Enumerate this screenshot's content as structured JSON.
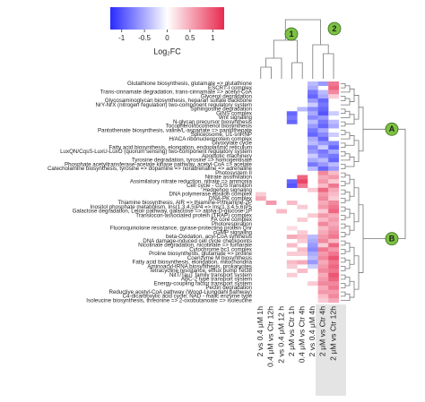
{
  "chart_data": {
    "type": "heatmap",
    "colorbar_title": "Log₂FC",
    "zlim": [
      -1.25,
      1.25
    ],
    "zticks": [
      -1,
      -0.5,
      0,
      0.5,
      1
    ],
    "colorscale": [
      "#2a2aff",
      "#ffffff",
      "#e82a50"
    ],
    "column_clusters": [
      "1",
      "2"
    ],
    "row_clusters": [
      "A",
      "B"
    ],
    "columns": [
      "2 vs 0.4 μM 1h",
      "0.4 μM vs Ctr 12h",
      "2 vs 0.4 μM 12 h",
      "2 μM vs Ctr 1h",
      "0.4 μM vs Ctr 4h",
      "2 vs 0.4 μM 4h",
      "2 μM vs Ctr 4h",
      "2 μM vs Ctr 12h"
    ],
    "rows": [
      "Glutathione biosynthesis, glutamate => glutathione",
      "ESCRT-I complex",
      "Trans-cinnamate degradation, trans-cinnamate => acetyl-CoA",
      "Glycerol degradation",
      "Glycosaminoglycan biosynthesis, heparan sulfate backbone",
      "NrY-NrX (nitrogen regulation) two-component regulatory system",
      "Sphingosine degradation",
      "GINS complex",
      "Wnt signaling",
      "N-glycan precursor biosynthesis",
      "Tocopherol/tocotrienol biosynthesis",
      "Pantothenate biosynthesis, valine/L-aspartate => pantothenate",
      "Spliceosome, U1-snRNP",
      "H/ACA ribonucleoprotein complex",
      "Glyoxylate cycle",
      "Fatty acid biosynthesis, elongation, endoplasmic reticulum",
      "LuxQN/CqsS-LuxU-LuxO (quorum sensing) two-component regulatory system",
      "Apoptotic machinery",
      "Tyrosine degradation, tyrosine => homogentisate",
      "Phosphate acetyltransferase-acetate kinase pathway, acetyl-CoA => acetate",
      "Catecholamine biosynthesis, tyrosine => dopamine => noradrenaline => adrenaline",
      "Photosystem II",
      "Nitrate assimilation",
      "Assimilatory nitrate reduction, nitrate => ammonia",
      "Cell cycle - G1/S transition",
      "Hedgehog signaling",
      "DNA polymerase epsilon complex",
      "DNA-PK complex",
      "Thiamine biosynthesis, AIR => thiamine-P/thiamine-2P",
      "Inositol phosphate metabolism, Ins(1,3,4,5)P4 => Ins(1,3,4,5,6)P5",
      "Galactose degradation, Leloir pathway, galactose => alpha-D-glucose-1P",
      "Translocon-associated protein (TRAP) complex",
      "FA core complex",
      "Photorespiration",
      "Fluoroquinolone resistance, gyrase-protecting protein Qnr",
      "cGMP signaling",
      "beta-Oxidation, acyl-CoA synthesis",
      "DNA damage-induced cell cycle checkpoints",
      "Nicotinate degradation, nicotinate => fumarate",
      "Cytochrome bc1 complex",
      "Proline biosynthesis, glutamate => proline",
      "Coenzyme M biosynthesis",
      "Fatty acid biosynthesis, elongation, mitochondria",
      "Aminoacyl-tRNA biosynthesis, prokaryotes",
      "Tetracycline resistance, efflux pump Tet38",
      "NitT/TauT family transport system",
      "ABC-2 type transport system",
      "Energy-coupling factor transport system",
      "Pectin degradation",
      "Reductive acetyl-CoA pathway (Wood-Ljungdahl pathway)",
      "C4-dicarboxylic acid cycle, NAD - malic enzyme type",
      "Isoleucine biosynthesis, threonine => 2-oxobutanoate => isoleucine"
    ],
    "values": [
      [
        null,
        null,
        null,
        null,
        null,
        -0.4,
        -0.6,
        0.8
      ],
      [
        null,
        null,
        null,
        null,
        null,
        -0.5,
        null,
        0.9
      ],
      [
        null,
        null,
        null,
        null,
        null,
        -0.8,
        -0.4,
        0.7
      ],
      [
        null,
        null,
        null,
        null,
        null,
        -0.9,
        -0.5,
        0.3
      ],
      [
        null,
        null,
        null,
        null,
        null,
        -0.6,
        -0.9,
        null
      ],
      [
        null,
        null,
        null,
        null,
        null,
        -0.3,
        -0.8,
        null
      ],
      [
        null,
        null,
        null,
        null,
        -0.4,
        -0.7,
        -0.9,
        null
      ],
      [
        null,
        null,
        null,
        -0.9,
        null,
        -0.5,
        -1,
        -0.3
      ],
      [
        null,
        null,
        null,
        -0.8,
        null,
        -0.7,
        -0.6,
        null
      ],
      [
        null,
        null,
        null,
        -0.9,
        null,
        -0.4,
        -0.8,
        -0.4
      ],
      [
        null,
        null,
        null,
        null,
        null,
        -0.6,
        -0.9,
        -0.5
      ],
      [
        null,
        null,
        null,
        null,
        null,
        -0.8,
        -0.5,
        null
      ],
      [
        null,
        null,
        null,
        null,
        null,
        -0.9,
        -0.7,
        -0.3
      ],
      [
        null,
        null,
        null,
        null,
        null,
        -0.5,
        -0.9,
        null
      ],
      [
        null,
        null,
        null,
        null,
        null,
        -0.4,
        -0.6,
        -0.7
      ],
      [
        null,
        null,
        null,
        null,
        null,
        -0.7,
        -0.3,
        -0.9
      ],
      [
        null,
        null,
        null,
        null,
        null,
        -0.6,
        -0.8,
        -0.5
      ],
      [
        null,
        null,
        null,
        null,
        null,
        -0.3,
        -0.7,
        -0.8
      ],
      [
        null,
        null,
        null,
        null,
        null,
        -0.5,
        -0.4,
        -0.9
      ],
      [
        null,
        null,
        null,
        null,
        null,
        -0.8,
        -0.6,
        -0.4
      ],
      [
        null,
        null,
        null,
        null,
        null,
        -0.4,
        -0.9,
        -0.6
      ],
      [
        null,
        null,
        null,
        null,
        null,
        null,
        0.7,
        0.4
      ],
      [
        null,
        null,
        null,
        null,
        0.9,
        null,
        0.5,
        0.6
      ],
      [
        null,
        null,
        null,
        -0.9,
        1.1,
        null,
        0.6,
        0.3
      ],
      [
        null,
        null,
        null,
        -1,
        0.8,
        null,
        0.4,
        0.8
      ],
      [
        null,
        null,
        null,
        null,
        null,
        0.3,
        0.9,
        0.5
      ],
      [
        0.3,
        null,
        null,
        null,
        null,
        null,
        0.6,
        0.4
      ],
      [
        0.5,
        null,
        null,
        null,
        null,
        null,
        0.7,
        0.3
      ],
      [
        null,
        0.6,
        null,
        0.4,
        null,
        null,
        0.5,
        0.7
      ],
      [
        null,
        null,
        null,
        null,
        0.3,
        null,
        0.6,
        0.8
      ],
      [
        null,
        null,
        0.4,
        null,
        null,
        null,
        0.3,
        0.9
      ],
      [
        null,
        null,
        null,
        null,
        null,
        0.3,
        0.6,
        0.5
      ],
      [
        null,
        null,
        null,
        null,
        0.3,
        null,
        0.4,
        0.6
      ],
      [
        null,
        null,
        null,
        null,
        null,
        null,
        0.7,
        0.5
      ],
      [
        null,
        null,
        null,
        0.2,
        null,
        null,
        0.4,
        0.6
      ],
      [
        null,
        null,
        null,
        null,
        0.3,
        null,
        0.5,
        0.7
      ],
      [
        null,
        null,
        null,
        0.5,
        0.4,
        -0.4,
        0.6,
        0.8
      ],
      [
        null,
        null,
        null,
        null,
        0.3,
        -0.5,
        0.7,
        0.4
      ],
      [
        null,
        null,
        null,
        0.4,
        null,
        -0.6,
        0.3,
        0.9
      ],
      [
        null,
        null,
        null,
        null,
        0.4,
        -0.7,
        0.8,
        0.6
      ],
      [
        null,
        null,
        null,
        0.3,
        0.3,
        -0.5,
        0.6,
        0.8
      ],
      [
        null,
        null,
        null,
        null,
        null,
        -0.4,
        0.7,
        1
      ],
      [
        null,
        null,
        null,
        0.4,
        0.5,
        -0.6,
        0.5,
        0.8
      ],
      [
        null,
        null,
        null,
        0.3,
        null,
        -0.3,
        0.6,
        0.9
      ],
      [
        null,
        null,
        null,
        null,
        0.4,
        null,
        0.7,
        0.8
      ],
      [
        null,
        null,
        null,
        0.3,
        null,
        null,
        0.5,
        1
      ],
      [
        null,
        null,
        null,
        null,
        null,
        null,
        0.6,
        0.9
      ],
      [
        null,
        null,
        null,
        null,
        null,
        0.3,
        0.7,
        0.7
      ],
      [
        null,
        null,
        null,
        null,
        null,
        null,
        0.5,
        0.8
      ],
      [
        null,
        null,
        null,
        null,
        null,
        null,
        0.6,
        0.6
      ],
      [
        null,
        null,
        null,
        null,
        null,
        null,
        0.4,
        0.7
      ],
      [
        null,
        null,
        null,
        null,
        null,
        null,
        0.3,
        0.5
      ]
    ]
  }
}
